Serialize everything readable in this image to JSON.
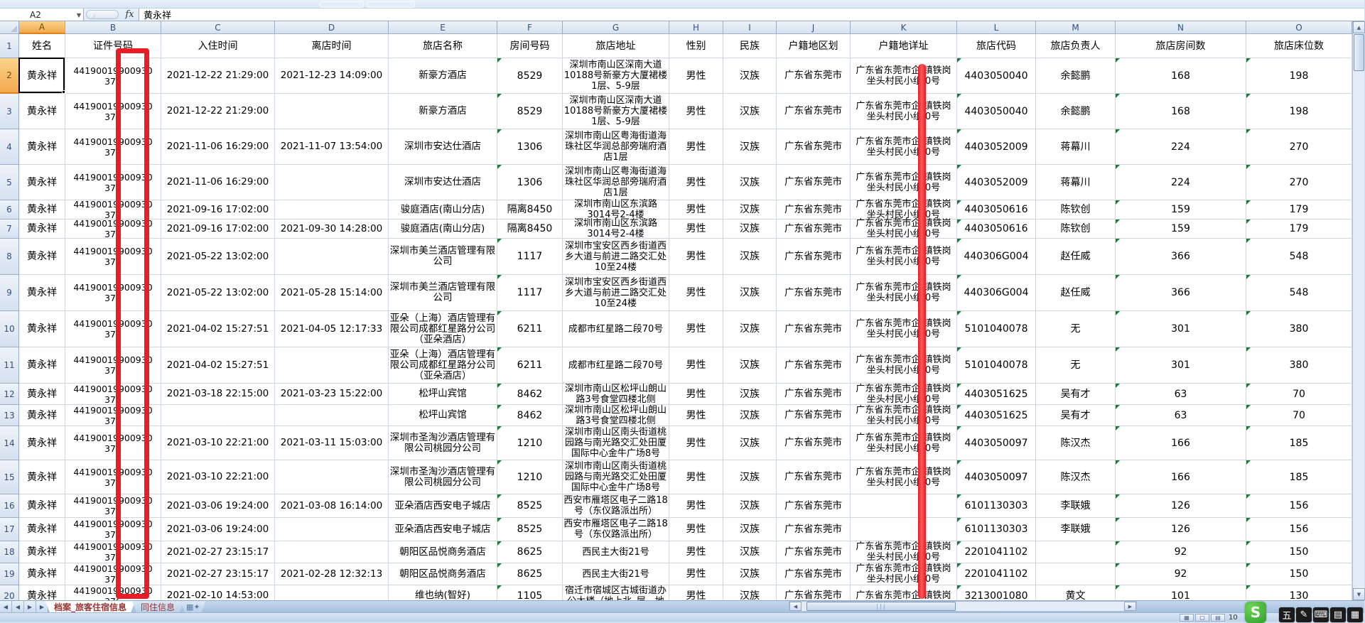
{
  "app": {
    "name_box_value": "A2",
    "fx_label": "fx",
    "formula_value": "黄永祥"
  },
  "annotations": {
    "redaction_color": "#ec1c24"
  },
  "grid": {
    "columns": [
      {
        "letter": "A",
        "header": "姓名",
        "key": "name"
      },
      {
        "letter": "B",
        "header": "证件号码",
        "key": "id"
      },
      {
        "letter": "C",
        "header": "入住时间",
        "key": "checkin"
      },
      {
        "letter": "D",
        "header": "离店时间",
        "key": "checkout"
      },
      {
        "letter": "E",
        "header": "旅店名称",
        "key": "hotel"
      },
      {
        "letter": "F",
        "header": "房间号码",
        "key": "room"
      },
      {
        "letter": "G",
        "header": "旅店地址",
        "key": "hotel_address"
      },
      {
        "letter": "H",
        "header": "性别",
        "key": "gender"
      },
      {
        "letter": "I",
        "header": "民族",
        "key": "ethnicity"
      },
      {
        "letter": "J",
        "header": "户籍地区划",
        "key": "reg_district"
      },
      {
        "letter": "K",
        "header": "户籍地详址",
        "key": "reg_address"
      },
      {
        "letter": "L",
        "header": "旅店代码",
        "key": "hotel_code"
      },
      {
        "letter": "M",
        "header": "旅店负责人",
        "key": "manager"
      },
      {
        "letter": "N",
        "header": "旅店房间数",
        "key": "room_count"
      },
      {
        "letter": "O",
        "header": "旅店床位数",
        "key": "bed_count"
      }
    ],
    "rows": [
      {
        "name": "黄永祥",
        "id": "44190019900930 376",
        "checkin": "2021-12-22 21:29:00",
        "checkout": "2021-12-23 14:09:00",
        "hotel": "新豪方酒店",
        "room": "8529",
        "hotel_address": "深圳市南山区深南大道10188号新豪方大厦裙楼1层、5-9层",
        "gender": "男性",
        "ethnicity": "汉族",
        "reg_district": "广东省东莞市",
        "reg_address": "广东省东莞市企 镇铁岗\n坐头村民小组 0号",
        "hotel_code": "4403050040",
        "manager": "余懿鹏",
        "room_count": "168",
        "bed_count": "198"
      },
      {
        "name": "黄永祥",
        "id": "44190019900930 376",
        "checkin": "2021-12-22 21:29:00",
        "checkout": "",
        "hotel": "新豪方酒店",
        "room": "8529",
        "hotel_address": "深圳市南山区深南大道10188号新豪方大厦裙楼1层、5-9层",
        "gender": "男性",
        "ethnicity": "汉族",
        "reg_district": "广东省东莞市",
        "reg_address": "广东省东莞市企 镇铁岗\n坐头村民小组 0号",
        "hotel_code": "4403050040",
        "manager": "余懿鹏",
        "room_count": "168",
        "bed_count": "198"
      },
      {
        "name": "黄永祥",
        "id": "44190019900930 376",
        "checkin": "2021-11-06 16:29:00",
        "checkout": "2021-11-07 13:54:00",
        "hotel": "深圳市安达仕酒店",
        "room": "1306",
        "hotel_address": "深圳市南山区粤海街道海珠社区华润总部旁瑞府酒店1层",
        "gender": "男性",
        "ethnicity": "汉族",
        "reg_district": "广东省东莞市",
        "reg_address": "广东省东莞市企 镇铁岗\n坐头村民小组 0号",
        "hotel_code": "4403052009",
        "manager": "蒋幕川",
        "room_count": "224",
        "bed_count": "270"
      },
      {
        "name": "黄永祥",
        "id": "44190019900930 376",
        "checkin": "2021-11-06 16:29:00",
        "checkout": "",
        "hotel": "深圳市安达仕酒店",
        "room": "1306",
        "hotel_address": "深圳市南山区粤海街道海珠社区华润总部旁瑞府酒店1层",
        "gender": "男性",
        "ethnicity": "汉族",
        "reg_district": "广东省东莞市",
        "reg_address": "广东省东莞市企 镇铁岗\n坐头村民小组 0号",
        "hotel_code": "4403052009",
        "manager": "蒋幕川",
        "room_count": "224",
        "bed_count": "270"
      },
      {
        "name": "黄永祥",
        "id": "44190019900930 376",
        "checkin": "2021-09-16 17:02:00",
        "checkout": "",
        "hotel": "骏庭酒店(南山分店)",
        "room": "隔离8450",
        "hotel_address": "深圳市南山区东滨路3014号2-4楼",
        "gender": "男性",
        "ethnicity": "汉族",
        "reg_district": "广东省东莞市",
        "reg_address": "广东省东莞市企 镇铁岗\n坐头村民小组 0号",
        "hotel_code": "4403050616",
        "manager": "陈钦创",
        "room_count": "159",
        "bed_count": "179"
      },
      {
        "name": "黄永祥",
        "id": "44190019900930 376",
        "checkin": "2021-09-16 17:02:00",
        "checkout": "2021-09-30 14:28:00",
        "hotel": "骏庭酒店(南山分店)",
        "room": "隔离8450",
        "hotel_address": "深圳市南山区东滨路3014号2-4楼",
        "gender": "男性",
        "ethnicity": "汉族",
        "reg_district": "广东省东莞市",
        "reg_address": "广东省东莞市企 镇铁岗\n坐头村民小组 0号",
        "hotel_code": "4403050616",
        "manager": "陈钦创",
        "room_count": "159",
        "bed_count": "179"
      },
      {
        "name": "黄永祥",
        "id": "44190019900930 376",
        "checkin": "2021-05-22 13:02:00",
        "checkout": "",
        "hotel": "深圳市美兰酒店管理有限公司",
        "room": "1117",
        "hotel_address": "深圳市宝安区西乡街道西乡大道与前进二路交汇处10至24楼",
        "gender": "男性",
        "ethnicity": "汉族",
        "reg_district": "广东省东莞市",
        "reg_address": "广东省东莞市企 镇铁岗\n坐头村民小组 0号",
        "hotel_code": "440306G004",
        "manager": "赵任威",
        "room_count": "366",
        "bed_count": "548"
      },
      {
        "name": "黄永祥",
        "id": "44190019900930 376",
        "checkin": "2021-05-22 13:02:00",
        "checkout": "2021-05-28 15:14:00",
        "hotel": "深圳市美兰酒店管理有限公司",
        "room": "1117",
        "hotel_address": "深圳市宝安区西乡街道西乡大道与前进二路交汇处10至24楼",
        "gender": "男性",
        "ethnicity": "汉族",
        "reg_district": "广东省东莞市",
        "reg_address": "广东省东莞市企 镇铁岗\n坐头村民小组 0号",
        "hotel_code": "440306G004",
        "manager": "赵任威",
        "room_count": "366",
        "bed_count": "548"
      },
      {
        "name": "黄永祥",
        "id": "44190019900930 376",
        "checkin": "2021-04-02 15:27:51",
        "checkout": "2021-04-05 12:17:33",
        "hotel": "亚朵（上海）酒店管理有限公司成都红星路分公司（亚朵酒店）",
        "room": "6211",
        "hotel_address": "成都市红星路二段70号",
        "gender": "男性",
        "ethnicity": "汉族",
        "reg_district": "广东省东莞市",
        "reg_address": "广东省东莞市企 镇铁岗\n坐头村民小组 0号",
        "hotel_code": "5101040078",
        "manager": "无",
        "room_count": "301",
        "bed_count": "380"
      },
      {
        "name": "黄永祥",
        "id": "44190019900930 376",
        "checkin": "2021-04-02 15:27:51",
        "checkout": "",
        "hotel": "亚朵（上海）酒店管理有限公司成都红星路分公司（亚朵酒店）",
        "room": "6211",
        "hotel_address": "成都市红星路二段70号",
        "gender": "男性",
        "ethnicity": "汉族",
        "reg_district": "广东省东莞市",
        "reg_address": "广东省东莞市企 镇铁岗\n坐头村民小组 0号",
        "hotel_code": "5101040078",
        "manager": "无",
        "room_count": "301",
        "bed_count": "380"
      },
      {
        "name": "黄永祥",
        "id": "44190019900930 376",
        "checkin": "2021-03-18 22:15:00",
        "checkout": "2021-03-23 15:22:00",
        "hotel": "松坪山宾馆",
        "room": "8462",
        "hotel_address": "深圳市南山区松坪山朗山路3号食堂四楼北侧",
        "gender": "男性",
        "ethnicity": "汉族",
        "reg_district": "广东省东莞市",
        "reg_address": "广东省东莞市企 镇铁岗\n坐头村民小组 0号",
        "hotel_code": "4403051625",
        "manager": "吴有才",
        "room_count": "63",
        "bed_count": "70"
      },
      {
        "name": "黄永祥",
        "id": "44190019900930 376",
        "checkin": "",
        "checkout": "",
        "hotel": "松坪山宾馆",
        "room": "8462",
        "hotel_address": "深圳市南山区松坪山朗山路3号食堂四楼北侧",
        "gender": "男性",
        "ethnicity": "汉族",
        "reg_district": "广东省东莞市",
        "reg_address": "广东省东莞市企 镇铁岗\n坐头村民小组 0号",
        "hotel_code": "4403051625",
        "manager": "吴有才",
        "room_count": "63",
        "bed_count": "70"
      },
      {
        "name": "黄永祥",
        "id": "44190019900930 376",
        "checkin": "2021-03-10 22:21:00",
        "checkout": "2021-03-11 15:03:00",
        "hotel": "深圳市圣淘沙酒店管理有限公司桃园分公司",
        "room": "1210",
        "hotel_address": "深圳市南山区南头街道桃园路与南光路交汇处田厦国际中心金牛广场8号",
        "gender": "男性",
        "ethnicity": "汉族",
        "reg_district": "广东省东莞市",
        "reg_address": "广东省东莞市企 镇铁岗\n坐头村民小组 0号",
        "hotel_code": "4403050097",
        "manager": "陈汉杰",
        "room_count": "166",
        "bed_count": "185"
      },
      {
        "name": "黄永祥",
        "id": "44190019900930 376",
        "checkin": "2021-03-10 22:21:00",
        "checkout": "",
        "hotel": "深圳市圣淘沙酒店管理有限公司桃园分公司",
        "room": "1210",
        "hotel_address": "深圳市南山区南头街道桃园路与南光路交汇处田厦国际中心金牛广场8号",
        "gender": "男性",
        "ethnicity": "汉族",
        "reg_district": "广东省东莞市",
        "reg_address": "广东省东莞市企 镇铁岗\n坐头村民小组 0号",
        "hotel_code": "4403050097",
        "manager": "陈汉杰",
        "room_count": "166",
        "bed_count": "185"
      },
      {
        "name": "黄永祥",
        "id": "44190019900930 376",
        "checkin": "2021-03-06 19:24:00",
        "checkout": "2021-03-08 16:14:00",
        "hotel": "亚朵酒店西安电子城店",
        "room": "8525",
        "hotel_address": "西安市雁塔区电子二路18号（东仪路派出所）",
        "gender": "男性",
        "ethnicity": "汉族",
        "reg_district": "广东省东莞市",
        "reg_address": "",
        "hotel_code": "6101130303",
        "manager": "李联娥",
        "room_count": "126",
        "bed_count": "156"
      },
      {
        "name": "黄永祥",
        "id": "44190019900930 376",
        "checkin": "2021-03-06 19:24:00",
        "checkout": "",
        "hotel": "亚朵酒店西安电子城店",
        "room": "8525",
        "hotel_address": "西安市雁塔区电子二路18号（东仪路派出所）",
        "gender": "男性",
        "ethnicity": "汉族",
        "reg_district": "广东省东莞市",
        "reg_address": "",
        "hotel_code": "6101130303",
        "manager": "李联娥",
        "room_count": "126",
        "bed_count": "156"
      },
      {
        "name": "黄永祥",
        "id": "44190019900930 376",
        "checkin": "2021-02-27 23:15:17",
        "checkout": "",
        "hotel": "朝阳区品悦商务酒店",
        "room": "8625",
        "hotel_address": "西民主大街21号",
        "gender": "男性",
        "ethnicity": "汉族",
        "reg_district": "广东省东莞市",
        "reg_address": "广东省东莞市企 镇铁岗\n坐头村民小组 0号",
        "hotel_code": "2201041102",
        "manager": "",
        "room_count": "92",
        "bed_count": "150"
      },
      {
        "name": "黄永祥",
        "id": "44190019900930 376",
        "checkin": "2021-02-27 23:15:17",
        "checkout": "2021-02-28 12:32:13",
        "hotel": "朝阳区品悦商务酒店",
        "room": "8625",
        "hotel_address": "西民主大街21号",
        "gender": "男性",
        "ethnicity": "汉族",
        "reg_district": "广东省东莞市",
        "reg_address": "广东省东莞市企 镇铁岗\n坐头村民小组 0号",
        "hotel_code": "2201041102",
        "manager": "",
        "room_count": "92",
        "bed_count": "150"
      },
      {
        "name": "黄永祥",
        "id": "44190019900930 376",
        "checkin": "2021-02-10 14:53:00",
        "checkout": "",
        "hotel": "维也纳(智好)",
        "room": "1105",
        "hotel_address": "宿迁市宿城区古城街道办公大楼（地上北_层、地",
        "gender": "男性",
        "ethnicity": "汉族",
        "reg_district": "广东省东莞市",
        "reg_address": "广东省东莞市企 镇铁岗",
        "hotel_code": "3213001080",
        "manager": "黄文",
        "room_count": "101",
        "bed_count": "130"
      }
    ]
  },
  "sheet_tabs": [
    {
      "label": "档案_旅客住宿信息",
      "active": true
    },
    {
      "label": "同住信息",
      "active": false
    }
  ],
  "tab_nav": {
    "first": "◀",
    "prev": "◀",
    "next": "▶",
    "last": "▶",
    "add_sheet": "▦✦"
  },
  "scrollbars": {
    "up": "▲",
    "down": "▼",
    "left": "◀",
    "right": "▶",
    "grip": "∣∣∣"
  },
  "status": {
    "view_icons": [
      {
        "glyph": "▦",
        "name": "normal-view"
      },
      {
        "glyph": "▢",
        "name": "page-layout-view"
      },
      {
        "glyph": "▤",
        "name": "page-break-view"
      }
    ],
    "zoom_label": "10",
    "s_logo_letter": "S",
    "ime_icons": [
      {
        "glyph": "五"
      },
      {
        "glyph": "✎"
      },
      {
        "glyph": "⌨"
      },
      {
        "glyph": "▤"
      },
      {
        "glyph": "▦"
      }
    ]
  }
}
